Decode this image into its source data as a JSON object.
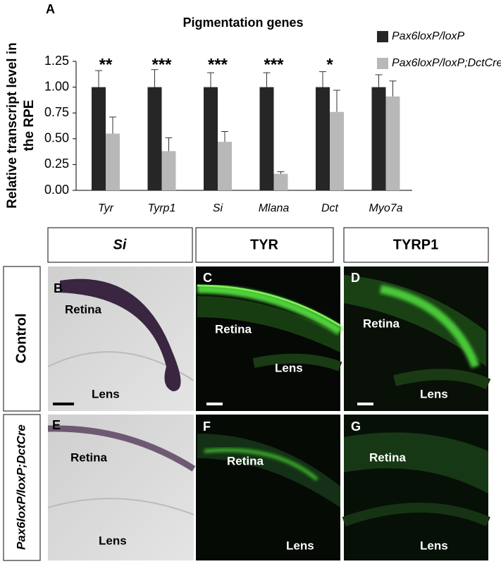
{
  "chart_data": {
    "type": "bar",
    "panel_label": "A",
    "title": "Pigmentation genes",
    "ylabel": [
      "Relative transcript level in",
      "the RPE"
    ],
    "categories": [
      "Tyr",
      "Tyrp1",
      "Si",
      "Mlana",
      "Dct",
      "Myo7a"
    ],
    "series": [
      {
        "name": "Pax6loxP/loxP",
        "color": "#262626",
        "values": [
          1.0,
          1.0,
          1.0,
          1.0,
          1.0,
          1.0
        ],
        "errors": [
          0.16,
          0.17,
          0.14,
          0.14,
          0.15,
          0.12
        ]
      },
      {
        "name": "Pax6loxP/loxP;DctCre",
        "color": "#b8b8b8",
        "values": [
          0.55,
          0.38,
          0.47,
          0.16,
          0.76,
          0.91
        ],
        "errors": [
          0.16,
          0.13,
          0.1,
          0.02,
          0.21,
          0.15
        ]
      }
    ],
    "significance": [
      "**",
      "***",
      "***",
      "***",
      "*",
      null
    ],
    "ylim": [
      0,
      1.25
    ],
    "yticks": [
      {
        "value": 0,
        "label": "0.00"
      },
      {
        "value": 0.25,
        "label": "0.25"
      },
      {
        "value": 0.5,
        "label": "0.50"
      },
      {
        "value": 0.75,
        "label": "0.75"
      },
      {
        "value": 1,
        "label": "1.00"
      },
      {
        "value": 1.25,
        "label": "1.25"
      }
    ],
    "grid": false,
    "legend": "upper right"
  },
  "panels": {
    "columns": [
      "Si",
      "TYR",
      "TYRP1"
    ],
    "rows": [
      "Control",
      "Pax6loxP/loxP;DctCre"
    ],
    "images": [
      {
        "letter": "B",
        "retina": "Retina",
        "lens": "Lens"
      },
      {
        "letter": "C",
        "retina": "Retina",
        "lens": "Lens"
      },
      {
        "letter": "D",
        "retina": "Retina",
        "lens": "Lens"
      },
      {
        "letter": "E",
        "retina": "Retina",
        "lens": "Lens"
      },
      {
        "letter": "F",
        "retina": "Retina",
        "lens": "Lens"
      },
      {
        "letter": "G",
        "retina": "Retina",
        "lens": "Lens"
      }
    ]
  }
}
